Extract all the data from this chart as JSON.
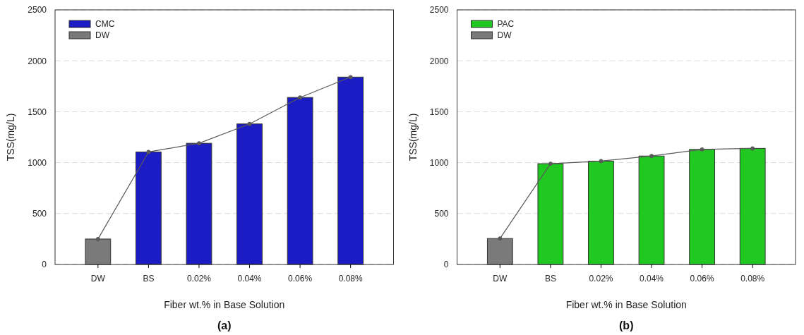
{
  "chart_data": [
    {
      "type": "bar",
      "title": "(a)",
      "xlabel": "Fiber wt.% in Base Solution",
      "ylabel": "TSS(mg/L)",
      "categories": [
        "DW",
        "BS",
        "0.02%",
        "0.04%",
        "0.06%",
        "0.08%"
      ],
      "series": [
        {
          "name": "CMC",
          "color": "#1c1cc4",
          "values": [
            null,
            1105,
            1190,
            1380,
            1640,
            1840
          ]
        },
        {
          "name": "DW",
          "color": "#7a7a7a",
          "values": [
            250,
            null,
            null,
            null,
            null,
            null
          ]
        },
        {
          "type": "line",
          "color": "#5a5a5a",
          "marker": "circle",
          "values": [
            250,
            1105,
            1190,
            1380,
            1640,
            1840
          ]
        }
      ],
      "ylim": [
        0,
        2500
      ],
      "yticks": [
        0,
        500,
        1000,
        1500,
        2000,
        2500
      ],
      "grid": "y",
      "legend": "top left"
    },
    {
      "type": "bar",
      "title": "(b)",
      "xlabel": "Fiber wt.% in Base Solution",
      "ylabel": "TSS(mg/L)",
      "categories": [
        "DW",
        "BS",
        "0.02%",
        "0.04%",
        "0.06%",
        "0.08%"
      ],
      "series": [
        {
          "name": "PAC",
          "color": "#22c822",
          "values": [
            null,
            990,
            1015,
            1065,
            1130,
            1140
          ]
        },
        {
          "name": "DW",
          "color": "#7a7a7a",
          "values": [
            255,
            null,
            null,
            null,
            null,
            null
          ]
        },
        {
          "type": "line",
          "color": "#5a5a5a",
          "marker": "circle",
          "values": [
            255,
            990,
            1015,
            1065,
            1130,
            1140
          ]
        }
      ],
      "ylim": [
        0,
        2500
      ],
      "yticks": [
        0,
        500,
        1000,
        1500,
        2000,
        2500
      ],
      "grid": "y",
      "legend": "top left"
    }
  ]
}
